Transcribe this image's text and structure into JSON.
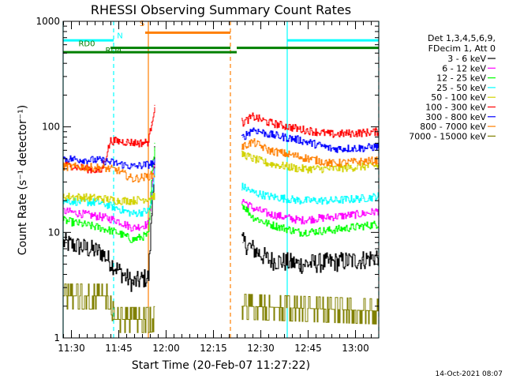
{
  "chart_data": {
    "type": "line",
    "title": "RHESSI Observing Summary Count Rates",
    "xlabel": "Start Time (20-Feb-07 11:27:22)",
    "ylabel": "Count Rate (s⁻¹ detector⁻¹)",
    "yscale": "log",
    "ylim": [
      1,
      1000
    ],
    "xlim_minutes": [
      0,
      100
    ],
    "x_ticks": [
      "11:30",
      "11:45",
      "12:00",
      "12:15",
      "12:30",
      "12:45",
      "13:00"
    ],
    "y_ticks": [
      "1",
      "10",
      "100",
      "1000"
    ],
    "legend_header": [
      "Det 1,3,4,5,6,9,",
      "FDecim 1, Att 0"
    ],
    "legend_position": "right",
    "series": [
      {
        "name": "3 - 6 keV",
        "color": "#000000",
        "values": [
          [
            0,
            8
          ],
          [
            12,
            6.5
          ],
          [
            17,
            4.5
          ],
          [
            22,
            3.3
          ],
          [
            27,
            3.8
          ],
          [
            28,
            15
          ],
          [
            29,
            60
          ],
          [
            57,
            8
          ],
          [
            60,
            7
          ],
          [
            65,
            5.5
          ],
          [
            75,
            5
          ],
          [
            85,
            5.2
          ],
          [
            95,
            5.5
          ],
          [
            100,
            6
          ]
        ]
      },
      {
        "name": "6 - 12 keV",
        "color": "#ff00ff",
        "values": [
          [
            0,
            16
          ],
          [
            12,
            14
          ],
          [
            17,
            13
          ],
          [
            22,
            11
          ],
          [
            27,
            12
          ],
          [
            28,
            25
          ],
          [
            29,
            45
          ],
          [
            57,
            20
          ],
          [
            60,
            17
          ],
          [
            65,
            15
          ],
          [
            75,
            13
          ],
          [
            85,
            14
          ],
          [
            95,
            15
          ],
          [
            100,
            16
          ]
        ]
      },
      {
        "name": "12 - 25 keV",
        "color": "#00ff00",
        "values": [
          [
            0,
            13
          ],
          [
            12,
            11
          ],
          [
            17,
            10
          ],
          [
            22,
            8.5
          ],
          [
            27,
            9.5
          ],
          [
            28,
            30
          ],
          [
            29,
            70
          ],
          [
            57,
            18
          ],
          [
            60,
            14
          ],
          [
            65,
            12
          ],
          [
            75,
            10
          ],
          [
            85,
            10.5
          ],
          [
            95,
            11.5
          ],
          [
            100,
            12
          ]
        ]
      },
      {
        "name": "25 - 50 keV",
        "color": "#00ffff",
        "values": [
          [
            0,
            20
          ],
          [
            12,
            19
          ],
          [
            17,
            17
          ],
          [
            22,
            15
          ],
          [
            27,
            16
          ],
          [
            28,
            20
          ],
          [
            29,
            40
          ],
          [
            57,
            27
          ],
          [
            60,
            24
          ],
          [
            65,
            22
          ],
          [
            75,
            20
          ],
          [
            85,
            20
          ],
          [
            95,
            21
          ],
          [
            100,
            22
          ]
        ]
      },
      {
        "name": "50 - 100 keV",
        "color": "#d2d200",
        "values": [
          [
            0,
            22
          ],
          [
            12,
            21
          ],
          [
            17,
            20
          ],
          [
            22,
            20
          ],
          [
            27,
            21
          ],
          [
            57,
            55
          ],
          [
            60,
            50
          ],
          [
            65,
            45
          ],
          [
            75,
            40
          ],
          [
            85,
            40
          ],
          [
            95,
            42
          ],
          [
            100,
            43
          ]
        ]
      },
      {
        "name": "100 - 300 keV",
        "color": "#ff0000",
        "values": [
          [
            0,
            44
          ],
          [
            12,
            38
          ],
          [
            15,
            74
          ],
          [
            20,
            72
          ],
          [
            24,
            70
          ],
          [
            27,
            72
          ],
          [
            28,
            110
          ],
          [
            29,
            160
          ],
          [
            57,
            110
          ],
          [
            60,
            125
          ],
          [
            65,
            110
          ],
          [
            75,
            95
          ],
          [
            85,
            85
          ],
          [
            95,
            88
          ],
          [
            100,
            90
          ]
        ]
      },
      {
        "name": "300 - 800 keV",
        "color": "#0000ff",
        "values": [
          [
            0,
            50
          ],
          [
            12,
            48
          ],
          [
            17,
            45
          ],
          [
            22,
            42
          ],
          [
            27,
            44
          ],
          [
            57,
            80
          ],
          [
            60,
            95
          ],
          [
            65,
            85
          ],
          [
            75,
            75
          ],
          [
            85,
            62
          ],
          [
            95,
            63
          ],
          [
            100,
            65
          ]
        ]
      },
      {
        "name": "800 - 7000 keV",
        "color": "#ff7f00",
        "values": [
          [
            0,
            42
          ],
          [
            12,
            41
          ],
          [
            17,
            39
          ],
          [
            22,
            32
          ],
          [
            27,
            34
          ],
          [
            57,
            65
          ],
          [
            60,
            72
          ],
          [
            65,
            60
          ],
          [
            75,
            52
          ],
          [
            85,
            45
          ],
          [
            95,
            47
          ],
          [
            100,
            48
          ]
        ]
      },
      {
        "name": "7000 - 15000 keV",
        "color": "#808000",
        "values": [
          [
            0,
            2.5
          ],
          [
            15,
            2.5
          ],
          [
            16,
            1.5
          ],
          [
            27,
            1.5
          ],
          [
            57,
            2.0
          ],
          [
            100,
            1.8
          ]
        ]
      }
    ],
    "annotations": {
      "S": {
        "label": "S",
        "color": "#ff7f00"
      },
      "N": {
        "label": "N",
        "color": "#00ffff"
      },
      "RD0": {
        "label": "RD0",
        "color": "#008000"
      },
      "RD4": {
        "label": "RD4",
        "color": "#008000"
      }
    },
    "flag_bars": [
      {
        "flag": "N",
        "color": "#00ffff",
        "value": 660,
        "segments": [
          [
            0,
            16
          ],
          [
            71,
            100
          ]
        ]
      },
      {
        "flag": "S",
        "color": "#ff7f00",
        "value": 780,
        "segments": [
          [
            26,
            53
          ]
        ]
      },
      {
        "flag": "RD0",
        "color": "#008000",
        "value": 560,
        "segments": [
          [
            15,
            53
          ],
          [
            55,
            100
          ]
        ]
      },
      {
        "flag": "RD4",
        "color": "#008000",
        "value": 510,
        "segments": [
          [
            0,
            53
          ],
          [
            53,
            55
          ]
        ]
      }
    ],
    "vertical_markers": [
      {
        "x": 0,
        "color": "#00ffff",
        "style": "solid"
      },
      {
        "x": 16,
        "color": "#00ffff",
        "style": "dashed"
      },
      {
        "x": 27,
        "color": "#ff7f00",
        "style": "solid"
      },
      {
        "x": 53,
        "color": "#ff7f00",
        "style": "dashed"
      },
      {
        "x": 71,
        "color": "#00ffff",
        "style": "solid"
      },
      {
        "x": 100,
        "color": "#00ffff",
        "style": "dashed"
      }
    ]
  },
  "footer": {
    "timestamp": "14-Oct-2021 08:07"
  }
}
